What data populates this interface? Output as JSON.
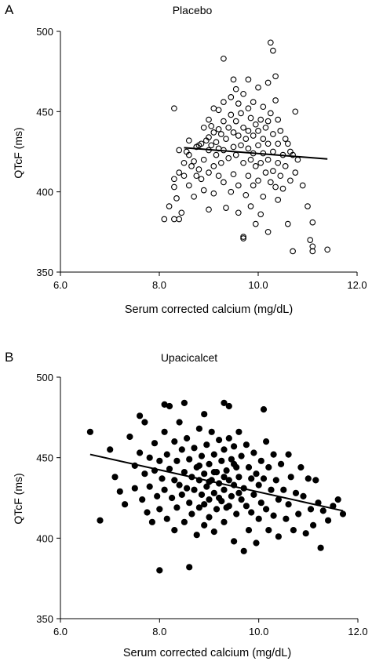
{
  "colors": {
    "axis": "#000000",
    "marker": "#000000",
    "background": "#ffffff"
  },
  "chart_data": [
    {
      "panel": "A",
      "type": "scatter",
      "title": "Placebo",
      "xlabel": "Serum corrected calcium (mg/dL)",
      "ylabel": "QTcF (ms)",
      "xlim": [
        6.0,
        12.0
      ],
      "ylim": [
        350,
        500
      ],
      "xticks": [
        "6.0",
        "8.0",
        "10.0",
        "12.0"
      ],
      "yticks": [
        "350",
        "400",
        "450",
        "500"
      ],
      "marker": "open-circle",
      "grid": false,
      "legend": "none",
      "trendline": {
        "x": [
          8.5,
          11.4
        ],
        "y": [
          427.5,
          420.5
        ]
      },
      "points": [
        [
          8.1,
          383
        ],
        [
          8.2,
          391
        ],
        [
          8.3,
          452
        ],
        [
          8.3,
          383
        ],
        [
          8.3,
          403
        ],
        [
          8.3,
          408
        ],
        [
          8.35,
          396
        ],
        [
          8.4,
          426
        ],
        [
          8.4,
          412
        ],
        [
          8.4,
          383
        ],
        [
          8.45,
          387
        ],
        [
          8.5,
          410
        ],
        [
          8.5,
          418
        ],
        [
          8.55,
          425
        ],
        [
          8.6,
          432
        ],
        [
          8.6,
          404
        ],
        [
          8.6,
          423
        ],
        [
          8.65,
          416
        ],
        [
          8.7,
          419
        ],
        [
          8.7,
          397
        ],
        [
          8.75,
          410
        ],
        [
          8.75,
          428
        ],
        [
          8.8,
          429
        ],
        [
          8.8,
          414
        ],
        [
          8.85,
          430
        ],
        [
          8.85,
          408
        ],
        [
          8.9,
          440
        ],
        [
          8.9,
          420
        ],
        [
          8.9,
          401
        ],
        [
          8.95,
          432
        ],
        [
          9.0,
          434
        ],
        [
          9.0,
          412
        ],
        [
          9.0,
          389
        ],
        [
          9.0,
          445
        ],
        [
          9.0,
          426
        ],
        [
          9.05,
          441
        ],
        [
          9.05,
          429
        ],
        [
          9.1,
          452
        ],
        [
          9.1,
          437
        ],
        [
          9.1,
          416
        ],
        [
          9.1,
          399
        ],
        [
          9.15,
          431
        ],
        [
          9.15,
          423
        ],
        [
          9.2,
          451
        ],
        [
          9.2,
          439
        ],
        [
          9.2,
          427
        ],
        [
          9.2,
          410
        ],
        [
          9.25,
          436
        ],
        [
          9.25,
          418
        ],
        [
          9.3,
          483
        ],
        [
          9.3,
          456
        ],
        [
          9.3,
          444
        ],
        [
          9.3,
          426
        ],
        [
          9.3,
          406
        ],
        [
          9.35,
          433
        ],
        [
          9.35,
          390
        ],
        [
          9.4,
          440
        ],
        [
          9.4,
          421
        ],
        [
          9.45,
          459
        ],
        [
          9.45,
          448
        ],
        [
          9.45,
          400
        ],
        [
          9.5,
          470
        ],
        [
          9.5,
          437
        ],
        [
          9.5,
          428
        ],
        [
          9.5,
          411
        ],
        [
          9.55,
          464
        ],
        [
          9.55,
          444
        ],
        [
          9.55,
          423
        ],
        [
          9.6,
          455
        ],
        [
          9.6,
          435
        ],
        [
          9.6,
          404
        ],
        [
          9.6,
          387
        ],
        [
          9.65,
          449
        ],
        [
          9.65,
          429
        ],
        [
          9.7,
          461
        ],
        [
          9.7,
          440
        ],
        [
          9.7,
          418
        ],
        [
          9.7,
          372
        ],
        [
          9.75,
          433
        ],
        [
          9.75,
          398
        ],
        [
          9.8,
          470
        ],
        [
          9.8,
          452
        ],
        [
          9.8,
          438
        ],
        [
          9.8,
          427
        ],
        [
          9.8,
          410
        ],
        [
          9.85,
          446
        ],
        [
          9.85,
          420
        ],
        [
          9.85,
          391
        ],
        [
          9.9,
          456
        ],
        [
          9.9,
          435
        ],
        [
          9.9,
          424
        ],
        [
          9.9,
          404
        ],
        [
          9.95,
          442
        ],
        [
          9.95,
          416
        ],
        [
          9.95,
          380
        ],
        [
          10.0,
          465
        ],
        [
          10.0,
          438
        ],
        [
          10.0,
          429
        ],
        [
          10.0,
          407
        ],
        [
          10.05,
          445
        ],
        [
          10.05,
          418
        ],
        [
          10.05,
          386
        ],
        [
          10.1,
          453
        ],
        [
          10.1,
          433
        ],
        [
          10.1,
          424
        ],
        [
          10.1,
          397
        ],
        [
          10.15,
          440
        ],
        [
          10.15,
          412
        ],
        [
          10.2,
          468
        ],
        [
          10.2,
          444
        ],
        [
          10.2,
          430
        ],
        [
          10.2,
          420
        ],
        [
          10.2,
          375
        ],
        [
          10.25,
          493
        ],
        [
          10.25,
          449
        ],
        [
          10.25,
          406
        ],
        [
          10.3,
          488
        ],
        [
          10.3,
          436
        ],
        [
          10.3,
          425
        ],
        [
          10.3,
          413
        ],
        [
          10.35,
          472
        ],
        [
          10.35,
          457
        ],
        [
          10.35,
          403
        ],
        [
          10.4,
          445
        ],
        [
          10.4,
          430
        ],
        [
          10.4,
          418
        ],
        [
          10.4,
          395
        ],
        [
          10.45,
          438
        ],
        [
          10.45,
          410
        ],
        [
          10.5,
          423
        ],
        [
          10.5,
          402
        ],
        [
          10.55,
          433
        ],
        [
          10.55,
          416
        ],
        [
          10.6,
          430
        ],
        [
          10.6,
          380
        ],
        [
          10.65,
          425
        ],
        [
          10.65,
          407
        ],
        [
          10.7,
          363
        ],
        [
          10.75,
          450
        ],
        [
          10.75,
          412
        ],
        [
          10.8,
          420
        ],
        [
          10.9,
          404
        ],
        [
          11.0,
          391
        ],
        [
          11.05,
          370
        ],
        [
          11.1,
          381
        ],
        [
          11.1,
          366
        ],
        [
          11.1,
          363
        ],
        [
          11.4,
          364
        ],
        [
          9.7,
          371
        ],
        [
          10.7,
          423
        ]
      ]
    },
    {
      "panel": "B",
      "type": "scatter",
      "title": "Upacicalcet",
      "xlabel": "Serum corrected calcium (mg/dL)",
      "ylabel": "QTcF (ms)",
      "xlim": [
        6.0,
        12.0
      ],
      "ylim": [
        350,
        500
      ],
      "xticks": [
        "6.0",
        "8.0",
        "10.0",
        "12.0"
      ],
      "yticks": [
        "350",
        "400",
        "450",
        "500"
      ],
      "marker": "filled-circle",
      "grid": false,
      "legend": "none",
      "trendline": {
        "x": [
          6.6,
          11.7
        ],
        "y": [
          452,
          417
        ]
      },
      "points": [
        [
          6.6,
          466
        ],
        [
          6.8,
          411
        ],
        [
          7.0,
          455
        ],
        [
          7.1,
          438
        ],
        [
          7.2,
          429
        ],
        [
          7.3,
          421
        ],
        [
          7.4,
          463
        ],
        [
          7.5,
          445
        ],
        [
          7.5,
          431
        ],
        [
          7.6,
          476
        ],
        [
          7.6,
          453
        ],
        [
          7.65,
          424
        ],
        [
          7.7,
          472
        ],
        [
          7.7,
          440
        ],
        [
          7.75,
          416
        ],
        [
          7.8,
          450
        ],
        [
          7.8,
          432
        ],
        [
          7.85,
          410
        ],
        [
          7.9,
          459
        ],
        [
          7.9,
          442
        ],
        [
          7.95,
          426
        ],
        [
          8.0,
          380
        ],
        [
          8.0,
          448
        ],
        [
          8.0,
          418
        ],
        [
          8.05,
          437
        ],
        [
          8.1,
          483
        ],
        [
          8.1,
          466
        ],
        [
          8.1,
          430
        ],
        [
          8.15,
          452
        ],
        [
          8.15,
          412
        ],
        [
          8.2,
          482
        ],
        [
          8.2,
          443
        ],
        [
          8.25,
          425
        ],
        [
          8.3,
          460
        ],
        [
          8.3,
          436
        ],
        [
          8.3,
          405
        ],
        [
          8.35,
          448
        ],
        [
          8.35,
          419
        ],
        [
          8.4,
          472
        ],
        [
          8.4,
          433
        ],
        [
          8.45,
          455
        ],
        [
          8.45,
          427
        ],
        [
          8.5,
          484
        ],
        [
          8.5,
          441
        ],
        [
          8.5,
          410
        ],
        [
          8.55,
          462
        ],
        [
          8.55,
          431
        ],
        [
          8.6,
          382
        ],
        [
          8.6,
          449
        ],
        [
          8.6,
          422
        ],
        [
          8.65,
          438
        ],
        [
          8.65,
          415
        ],
        [
          8.7,
          456
        ],
        [
          8.7,
          430
        ],
        [
          8.75,
          444
        ],
        [
          8.75,
          402
        ],
        [
          8.8,
          468
        ],
        [
          8.8,
          436
        ],
        [
          8.8,
          419
        ],
        [
          8.85,
          451
        ],
        [
          8.85,
          427
        ],
        [
          8.9,
          477
        ],
        [
          8.9,
          440
        ],
        [
          8.9,
          408
        ],
        [
          8.95,
          458
        ],
        [
          8.95,
          432
        ],
        [
          9.0,
          446
        ],
        [
          9.0,
          424
        ],
        [
          9.0,
          413
        ],
        [
          9.05,
          466
        ],
        [
          9.05,
          436
        ],
        [
          9.1,
          452
        ],
        [
          9.1,
          428
        ],
        [
          9.1,
          404
        ],
        [
          9.15,
          441
        ],
        [
          9.15,
          418
        ],
        [
          9.2,
          461
        ],
        [
          9.2,
          434
        ],
        [
          9.25,
          448
        ],
        [
          9.25,
          423
        ],
        [
          9.3,
          484
        ],
        [
          9.3,
          455
        ],
        [
          9.3,
          430
        ],
        [
          9.3,
          410
        ],
        [
          9.35,
          442
        ],
        [
          9.35,
          419
        ],
        [
          9.4,
          482
        ],
        [
          9.4,
          462
        ],
        [
          9.4,
          436
        ],
        [
          9.45,
          449
        ],
        [
          9.45,
          426
        ],
        [
          9.5,
          457
        ],
        [
          9.5,
          433
        ],
        [
          9.5,
          398
        ],
        [
          9.55,
          444
        ],
        [
          9.55,
          415
        ],
        [
          9.6,
          466
        ],
        [
          9.6,
          438
        ],
        [
          9.65,
          451
        ],
        [
          9.65,
          424
        ],
        [
          9.7,
          431
        ],
        [
          9.7,
          392
        ],
        [
          9.75,
          458
        ],
        [
          9.75,
          420
        ],
        [
          9.8,
          444
        ],
        [
          9.8,
          405
        ],
        [
          9.85,
          437
        ],
        [
          9.85,
          416
        ],
        [
          9.9,
          453
        ],
        [
          9.9,
          427
        ],
        [
          9.95,
          440
        ],
        [
          9.95,
          397
        ],
        [
          10.0,
          433
        ],
        [
          10.0,
          412
        ],
        [
          10.05,
          448
        ],
        [
          10.05,
          422
        ],
        [
          10.1,
          480
        ],
        [
          10.1,
          437
        ],
        [
          10.15,
          460
        ],
        [
          10.15,
          418
        ],
        [
          10.2,
          444
        ],
        [
          10.2,
          405
        ],
        [
          10.25,
          430
        ],
        [
          10.3,
          452
        ],
        [
          10.3,
          414
        ],
        [
          10.35,
          436
        ],
        [
          10.4,
          424
        ],
        [
          10.4,
          401
        ],
        [
          10.45,
          446
        ],
        [
          10.5,
          430
        ],
        [
          10.55,
          412
        ],
        [
          10.6,
          452
        ],
        [
          10.6,
          421
        ],
        [
          10.65,
          438
        ],
        [
          10.7,
          405
        ],
        [
          10.75,
          428
        ],
        [
          10.8,
          415
        ],
        [
          10.85,
          444
        ],
        [
          10.9,
          426
        ],
        [
          10.95,
          403
        ],
        [
          11.0,
          437
        ],
        [
          11.05,
          418
        ],
        [
          11.1,
          408
        ],
        [
          11.15,
          436
        ],
        [
          11.2,
          422
        ],
        [
          11.25,
          394
        ],
        [
          11.3,
          417
        ],
        [
          11.4,
          411
        ],
        [
          11.5,
          420
        ],
        [
          11.6,
          424
        ],
        [
          11.7,
          415
        ],
        [
          9.2,
          425
        ],
        [
          9.0,
          435
        ],
        [
          8.8,
          445
        ],
        [
          9.4,
          420
        ],
        [
          9.6,
          428
        ],
        [
          9.3,
          438
        ],
        [
          8.9,
          421
        ],
        [
          9.5,
          446
        ],
        [
          9.1,
          441
        ]
      ]
    }
  ],
  "panels": [
    {
      "letter": "A"
    },
    {
      "letter": "B"
    }
  ]
}
